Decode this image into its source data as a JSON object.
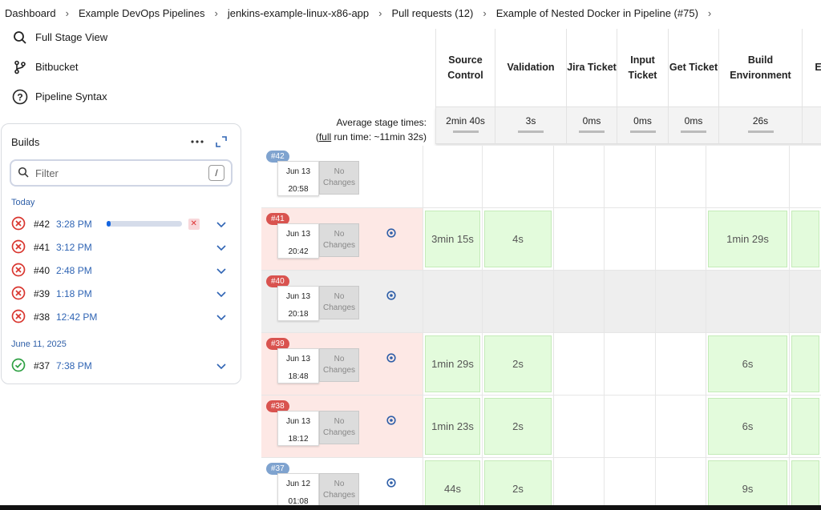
{
  "breadcrumb": [
    "Dashboard",
    "Example DevOps Pipelines",
    "jenkins-example-linux-x86-app",
    "Pull requests (12)",
    "Example of Nested Docker in Pipeline (#75)"
  ],
  "nav": [
    {
      "label": "Full Stage View",
      "icon": "search-icon"
    },
    {
      "label": "Bitbucket",
      "icon": "branch-icon"
    },
    {
      "label": "Pipeline Syntax",
      "icon": "help-icon"
    }
  ],
  "builds": {
    "title": "Builds",
    "filter_placeholder": "Filter",
    "filter_shortcut": "/",
    "groups": [
      {
        "label": "Today",
        "items": [
          {
            "num": "#42",
            "time": "3:28 PM",
            "status": "failed",
            "progress": 0.06
          },
          {
            "num": "#41",
            "time": "3:12 PM",
            "status": "failed"
          },
          {
            "num": "#40",
            "time": "2:48 PM",
            "status": "failed"
          },
          {
            "num": "#39",
            "time": "1:18 PM",
            "status": "failed"
          },
          {
            "num": "#38",
            "time": "12:42 PM",
            "status": "failed"
          }
        ]
      },
      {
        "label": "June 11, 2025",
        "items": [
          {
            "num": "#37",
            "time": "7:38 PM",
            "status": "success"
          }
        ]
      }
    ]
  },
  "stage_view": {
    "avg_label": "Average stage times:",
    "full_prefix": "full",
    "run_time": " run time: ~11min 32s)",
    "stages": [
      "Source Control",
      "Validation",
      "Jira Ticket",
      "Input Ticket",
      "Get Ticket",
      "Build Environment",
      "E"
    ],
    "averages": [
      "2min 40s",
      "3s",
      "0ms",
      "0ms",
      "0ms",
      "26s",
      ""
    ],
    "no_changes": "No Changes",
    "runs": [
      {
        "badge": "#42",
        "date": "Jun 13",
        "time": "20:58",
        "state": "running",
        "cells": [
          "",
          "",
          "",
          "",
          "",
          "",
          ""
        ]
      },
      {
        "badge": "#41",
        "date": "Jun 13",
        "time": "20:42",
        "state": "failed",
        "cells": [
          "3min 15s",
          "4s",
          "",
          "",
          "",
          "1min 29s",
          ""
        ]
      },
      {
        "badge": "#40",
        "date": "Jun 13",
        "time": "20:18",
        "state": "aborted",
        "cells": [
          "",
          "",
          "",
          "",
          "",
          "",
          ""
        ]
      },
      {
        "badge": "#39",
        "date": "Jun 13",
        "time": "18:48",
        "state": "failed",
        "cells": [
          "1min 29s",
          "2s",
          "",
          "",
          "",
          "6s",
          ""
        ]
      },
      {
        "badge": "#38",
        "date": "Jun 13",
        "time": "18:12",
        "state": "failed",
        "cells": [
          "1min 23s",
          "2s",
          "",
          "",
          "",
          "6s",
          ""
        ]
      },
      {
        "badge": "#37",
        "date": "Jun 12",
        "time": "01:08",
        "state": "success",
        "cells": [
          "44s",
          "2s",
          "",
          "",
          "",
          "9s",
          ""
        ]
      }
    ]
  },
  "colors": {
    "accent": "#1565e0",
    "fail": "#d9534f",
    "success_cell": "#e3fbdc",
    "failed_row": "#fde8e5",
    "aborted_row": "#eeeeee"
  }
}
